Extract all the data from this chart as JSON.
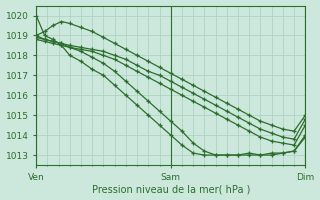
{
  "title": "Pression niveau de la mer( hPa )",
  "bg_color": "#cce8dc",
  "grid_color": "#aacfbf",
  "line_color": "#2d6e2d",
  "marker": "+",
  "ylabel_ticks": [
    1013,
    1014,
    1015,
    1016,
    1017,
    1018,
    1019,
    1020
  ],
  "xtick_labels": [
    "Ven",
    "Sam",
    "Dim"
  ],
  "xtick_positions": [
    0,
    48,
    96
  ],
  "xlim": [
    0,
    96
  ],
  "ylim": [
    1012.5,
    1020.5
  ],
  "lines": [
    {
      "x": [
        0,
        3,
        6,
        9,
        12,
        16,
        20,
        24,
        28,
        32,
        36,
        40,
        44,
        48,
        52,
        56,
        60,
        64,
        68,
        72,
        76,
        80,
        84,
        88,
        92,
        96
      ],
      "y": [
        1020.0,
        1019.0,
        1018.8,
        1018.5,
        1018.0,
        1017.7,
        1017.3,
        1017.0,
        1016.5,
        1016.0,
        1015.5,
        1015.0,
        1014.5,
        1014.0,
        1013.5,
        1013.1,
        1013.0,
        1013.0,
        1013.0,
        1013.0,
        1013.1,
        1013.0,
        1013.0,
        1013.1,
        1013.2,
        1013.9
      ]
    },
    {
      "x": [
        0,
        3,
        6,
        9,
        12,
        16,
        20,
        24,
        28,
        32,
        36,
        40,
        44,
        48,
        52,
        56,
        60,
        64,
        68,
        72,
        76,
        80,
        84,
        88,
        92,
        96
      ],
      "y": [
        1019.0,
        1018.8,
        1018.7,
        1018.6,
        1018.4,
        1018.2,
        1017.9,
        1017.6,
        1017.2,
        1016.7,
        1016.2,
        1015.7,
        1015.2,
        1014.7,
        1014.2,
        1013.6,
        1013.2,
        1013.0,
        1013.0,
        1013.0,
        1013.0,
        1013.0,
        1013.1,
        1013.1,
        1013.2,
        1014.0
      ]
    },
    {
      "x": [
        0,
        3,
        6,
        9,
        12,
        16,
        20,
        24,
        28,
        32,
        36,
        40,
        44,
        48,
        52,
        56,
        60,
        64,
        68,
        72,
        76,
        80,
        84,
        88,
        92,
        96
      ],
      "y": [
        1018.8,
        1018.7,
        1018.6,
        1018.5,
        1018.4,
        1018.3,
        1018.2,
        1018.0,
        1017.8,
        1017.5,
        1017.2,
        1016.9,
        1016.6,
        1016.3,
        1016.0,
        1015.7,
        1015.4,
        1015.1,
        1014.8,
        1014.5,
        1014.2,
        1013.9,
        1013.7,
        1013.6,
        1013.5,
        1014.5
      ]
    },
    {
      "x": [
        0,
        3,
        6,
        9,
        12,
        16,
        20,
        24,
        28,
        32,
        36,
        40,
        44,
        48,
        52,
        56,
        60,
        64,
        68,
        72,
        76,
        80,
        84,
        88,
        92,
        96
      ],
      "y": [
        1018.9,
        1018.8,
        1018.7,
        1018.6,
        1018.5,
        1018.4,
        1018.3,
        1018.2,
        1018.0,
        1017.8,
        1017.5,
        1017.2,
        1017.0,
        1016.7,
        1016.4,
        1016.1,
        1015.8,
        1015.5,
        1015.2,
        1014.9,
        1014.6,
        1014.3,
        1014.1,
        1013.9,
        1013.8,
        1014.8
      ]
    },
    {
      "x": [
        0,
        3,
        6,
        9,
        12,
        16,
        20,
        24,
        28,
        32,
        36,
        40,
        44,
        48,
        52,
        56,
        60,
        64,
        68,
        72,
        76,
        80,
        84,
        88,
        92,
        96
      ],
      "y": [
        1019.0,
        1019.2,
        1019.5,
        1019.7,
        1019.6,
        1019.4,
        1019.2,
        1018.9,
        1018.6,
        1018.3,
        1018.0,
        1017.7,
        1017.4,
        1017.1,
        1016.8,
        1016.5,
        1016.2,
        1015.9,
        1015.6,
        1015.3,
        1015.0,
        1014.7,
        1014.5,
        1014.3,
        1014.2,
        1015.0
      ]
    }
  ],
  "marker_size": 3.5,
  "linewidth": 0.9
}
